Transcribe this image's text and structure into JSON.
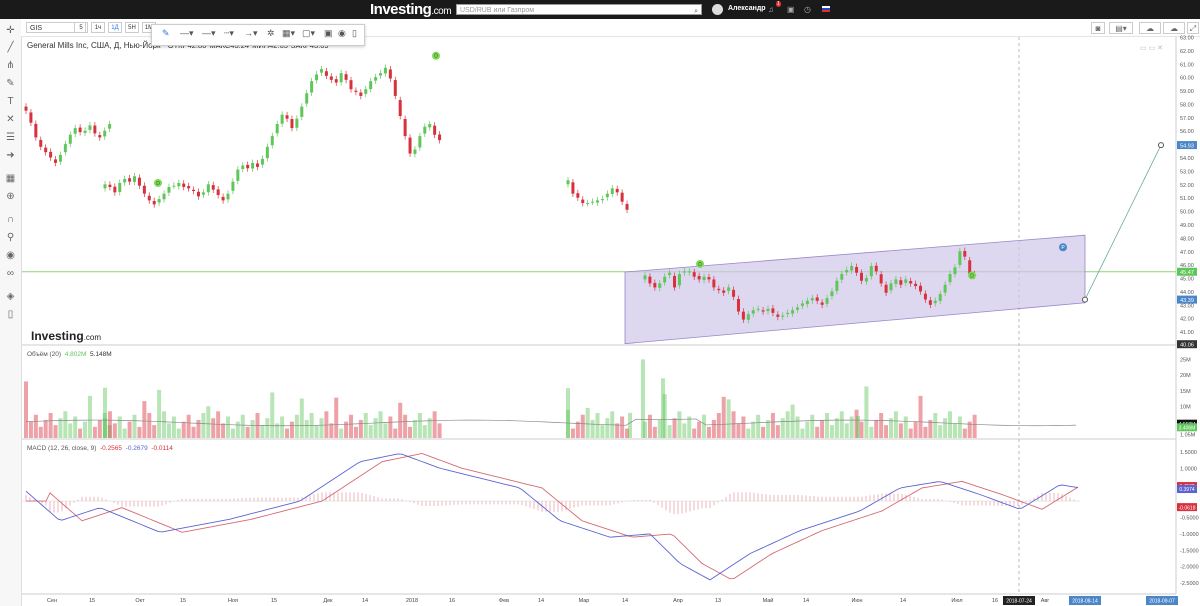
{
  "header": {
    "logo": "Investing",
    "logo_suffix": ".com",
    "search_placeholder": "USD/RUB или Газпром",
    "user_name": "Александр",
    "notification_count": "1"
  },
  "toolbar": {
    "symbol": "GIS",
    "timeframes": [
      "5",
      "1ч",
      "1Д",
      "5Н",
      "1М"
    ],
    "active_timeframe": "1Д"
  },
  "chart_title": {
    "name": "General Mills Inc, США, Д, Нью-Йорк",
    "open_label": "ОТКР",
    "open": "42.86",
    "high_label": "МАКС",
    "high": "43.24",
    "low_label": "МИН",
    "low": "42.65",
    "close_label": "ЗАКР",
    "close": "43.09"
  },
  "watermark": {
    "text": "Investing",
    "suffix": ".com"
  },
  "volume_legend": {
    "label": "Объём (20)",
    "v1": "4.802M",
    "v2": "5.148M"
  },
  "macd_legend": {
    "label": "MACD (12, 26, close, 9)",
    "v1": "-0.2565",
    "v2": "-0.2679",
    "v3": "-0.0114"
  },
  "colors": {
    "up": "#5fc65a",
    "down": "#d8313d",
    "channel_fill": "#cfc6e8",
    "channel_line": "#9a86c8",
    "macd_line": "#5b63d0",
    "signal_line": "#d36a73",
    "green_level": "#8fd07a"
  },
  "chart_data": [
    {
      "type": "candlestick",
      "title": "General Mills Inc, США, Д, Нью-Йорк",
      "ylim": [
        40,
        63
      ],
      "y_ticks": [
        63.0,
        62.0,
        61.0,
        60.0,
        59.0,
        58.0,
        57.0,
        56.0,
        55.0,
        54.0,
        53.0,
        52.0,
        51.0,
        50.0,
        49.0,
        48.0,
        47.0,
        46.0,
        45.0,
        44.0,
        43.0,
        42.0,
        41.0
      ],
      "price_labels": [
        {
          "value": "54.93",
          "price": 54.93,
          "color": "#4a86c8"
        },
        {
          "value": "45.47",
          "price": 45.47,
          "color": "#5fc65a"
        },
        {
          "value": "43.39",
          "price": 43.39,
          "color": "#4a86c8"
        },
        {
          "value": "40.06",
          "price": 40.06,
          "color": "#333333"
        }
      ],
      "x_labels": [
        "Сен",
        "15",
        "Окт",
        "15",
        "Ноя",
        "15",
        "Дек",
        "14",
        "2018",
        "16",
        "Фев",
        "14",
        "Мар",
        "14",
        "Апр",
        "13",
        "Май",
        "14",
        "Июн",
        "14",
        "Июл",
        "16",
        "Авг",
        "Сен"
      ],
      "date_badges": [
        "2018-07-24",
        "2018-08-14",
        "2018-09-07"
      ],
      "dividend_marker": "D",
      "split_marker": "P",
      "close_segments": [
        [
          57.5,
          56.6,
          55.5,
          54.8,
          54.4,
          54.0,
          53.6,
          54.2,
          55.0,
          55.7,
          56.2,
          55.9,
          56.0,
          56.4,
          55.8,
          55.5,
          56.0,
          56.5
        ],
        [
          52.0,
          51.8,
          51.4,
          52.1,
          52.4,
          52.2,
          52.6,
          51.9,
          51.3,
          50.8,
          50.5,
          50.9,
          51.3,
          51.8,
          51.9,
          52.1,
          51.8,
          51.7,
          51.5,
          51.1,
          51.4,
          52.0,
          51.6,
          51.2,
          50.8,
          51.3,
          52.2,
          53.1,
          53.4,
          53.2,
          53.6,
          53.3,
          53.9,
          54.8,
          55.6,
          56.5,
          57.2,
          56.9,
          56.2,
          56.9,
          57.8,
          58.8,
          59.7,
          60.2,
          60.6,
          60.1,
          59.8,
          59.6,
          60.3,
          59.8,
          59.1,
          58.9,
          58.6,
          59.1,
          59.7,
          60.0,
          60.3,
          60.7,
          59.9,
          58.6,
          57.1,
          55.6,
          54.3,
          54.6,
          55.6,
          56.3,
          56.5,
          55.7,
          55.3
        ],
        [
          52.3,
          51.3,
          51.0,
          50.6,
          50.6,
          50.7,
          50.8,
          50.9,
          51.3,
          51.7,
          51.4,
          50.7,
          50.1
        ],
        [
          45.2,
          44.6,
          44.3,
          44.6,
          45.1,
          45.4,
          44.3,
          45.3,
          45.5,
          45.5,
          45.1,
          44.9,
          45.1,
          44.9,
          44.3,
          44.1,
          43.9,
          44.3,
          43.6,
          42.5,
          41.9,
          42.3,
          42.6,
          42.7,
          42.5,
          42.7,
          42.4,
          42.1,
          42.2,
          42.4,
          42.6,
          42.8,
          43.1,
          43.3,
          43.5,
          43.3,
          43.0,
          43.5,
          44.0,
          44.8,
          45.3,
          45.6,
          45.9,
          45.4,
          44.8,
          45.0,
          45.9,
          45.5,
          44.6,
          43.9,
          44.6,
          44.9,
          44.5,
          44.9,
          44.6,
          44.4,
          44.0,
          43.4,
          43.0,
          43.3,
          43.8,
          44.5,
          45.3,
          45.8,
          47.0,
          46.6,
          45.3,
          45.2
        ]
      ]
    },
    {
      "type": "bar",
      "title": "Объём (20)",
      "ylim": [
        0,
        28
      ],
      "y_ticks": [
        "25M",
        "20M",
        "15M",
        "10M",
        "5M"
      ],
      "unit": "M",
      "price_labels": [
        {
          "value": "4.558M",
          "color": "#111111"
        },
        {
          "value": "3.406M",
          "color": "#5fc65a"
        }
      ],
      "extra_tick": "1.05M"
    },
    {
      "type": "line",
      "title": "MACD (12, 26, close, 9)",
      "ylim": [
        -2.8,
        1.8
      ],
      "y_ticks": [
        "1.5000",
        "1.0000",
        "0.5000",
        "-0.5000",
        "-1.0000",
        "-1.5000",
        "-2.0000",
        "-2.5000"
      ],
      "price_labels": [
        {
          "value": "0.4582",
          "color": "#d8313d"
        },
        {
          "value": "0.3974",
          "color": "#5b63d0"
        },
        {
          "value": "-0.0618",
          "color": "#d8313d"
        }
      ]
    }
  ]
}
